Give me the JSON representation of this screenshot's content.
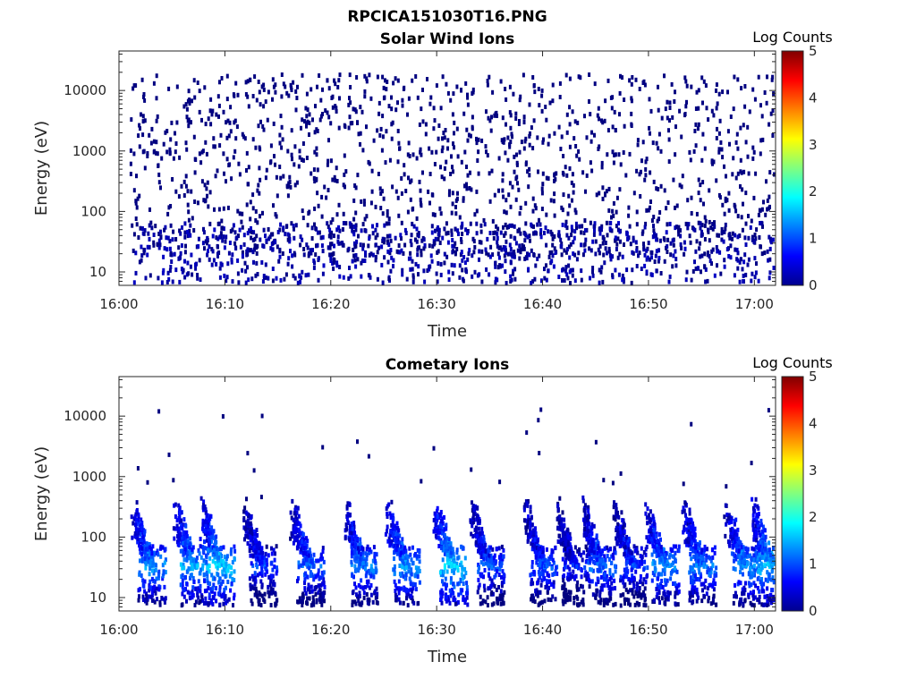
{
  "figure_title": "RPCICA151030T16.PNG",
  "chart_data": [
    {
      "type": "heatmap",
      "title": "Solar Wind Ions",
      "xlabel": "Time",
      "ylabel": "Energy (eV)",
      "x_tick_labels": [
        "16:00",
        "16:10",
        "16:20",
        "16:30",
        "16:40",
        "16:50",
        "17:00"
      ],
      "xlim": [
        "16:00",
        "17:02"
      ],
      "y_scale": "log",
      "y_tick_labels": [
        "10",
        "100",
        "1000",
        "10000"
      ],
      "ylim": [
        6,
        45000
      ],
      "colorbar": {
        "label": "Log Counts",
        "ticks": [
          "0",
          "1",
          "2",
          "3",
          "4",
          "5"
        ],
        "range": [
          0,
          5
        ],
        "colormap": "jet"
      },
      "data_start": "16:01",
      "data_end": "17:02",
      "description_values": {
        "dominant_log_counts": 0,
        "high_energy_scatter_range_eV": [
          20,
          20000
        ],
        "low_energy_band_range_eV": [
          7,
          70
        ]
      }
    },
    {
      "type": "heatmap",
      "title": "Cometary Ions",
      "xlabel": "Time",
      "ylabel": "Energy (eV)",
      "x_tick_labels": [
        "16:00",
        "16:10",
        "16:20",
        "16:30",
        "16:40",
        "16:50",
        "17:00"
      ],
      "xlim": [
        "16:00",
        "17:02"
      ],
      "y_scale": "log",
      "y_tick_labels": [
        "10",
        "100",
        "1000",
        "10000"
      ],
      "ylim": [
        6,
        45000
      ],
      "colorbar": {
        "label": "Log Counts",
        "ticks": [
          "0",
          "1",
          "2",
          "3",
          "4",
          "5"
        ],
        "range": [
          0,
          5
        ],
        "colormap": "jet"
      },
      "bursts": [
        {
          "t": "16:02.5",
          "log_counts_peak": 1.6
        },
        {
          "t": "16:06.5",
          "log_counts_peak": 1.7
        },
        {
          "t": "16:09.0",
          "log_counts_peak": 1.9
        },
        {
          "t": "16:13.0",
          "log_counts_peak": 1.2
        },
        {
          "t": "16:17.5",
          "log_counts_peak": 1.4
        },
        {
          "t": "16:22.5",
          "log_counts_peak": 1.5
        },
        {
          "t": "16:26.5",
          "log_counts_peak": 1.6
        },
        {
          "t": "16:31.0",
          "log_counts_peak": 1.9
        },
        {
          "t": "16:34.5",
          "log_counts_peak": 1.3
        },
        {
          "t": "16:39.5",
          "log_counts_peak": 1.3
        },
        {
          "t": "16:42.5",
          "log_counts_peak": 1.0
        },
        {
          "t": "16:45.0",
          "log_counts_peak": 1.4
        },
        {
          "t": "16:48.0",
          "log_counts_peak": 1.2
        },
        {
          "t": "16:51.0",
          "log_counts_peak": 1.6
        },
        {
          "t": "16:54.5",
          "log_counts_peak": 1.5
        },
        {
          "t": "16:58.5",
          "log_counts_peak": 1.6
        },
        {
          "t": "17:01.0",
          "log_counts_peak": 1.8
        }
      ],
      "burst_energy_range_eV": [
        8,
        500
      ],
      "burst_core_energy_eV": 35
    }
  ]
}
